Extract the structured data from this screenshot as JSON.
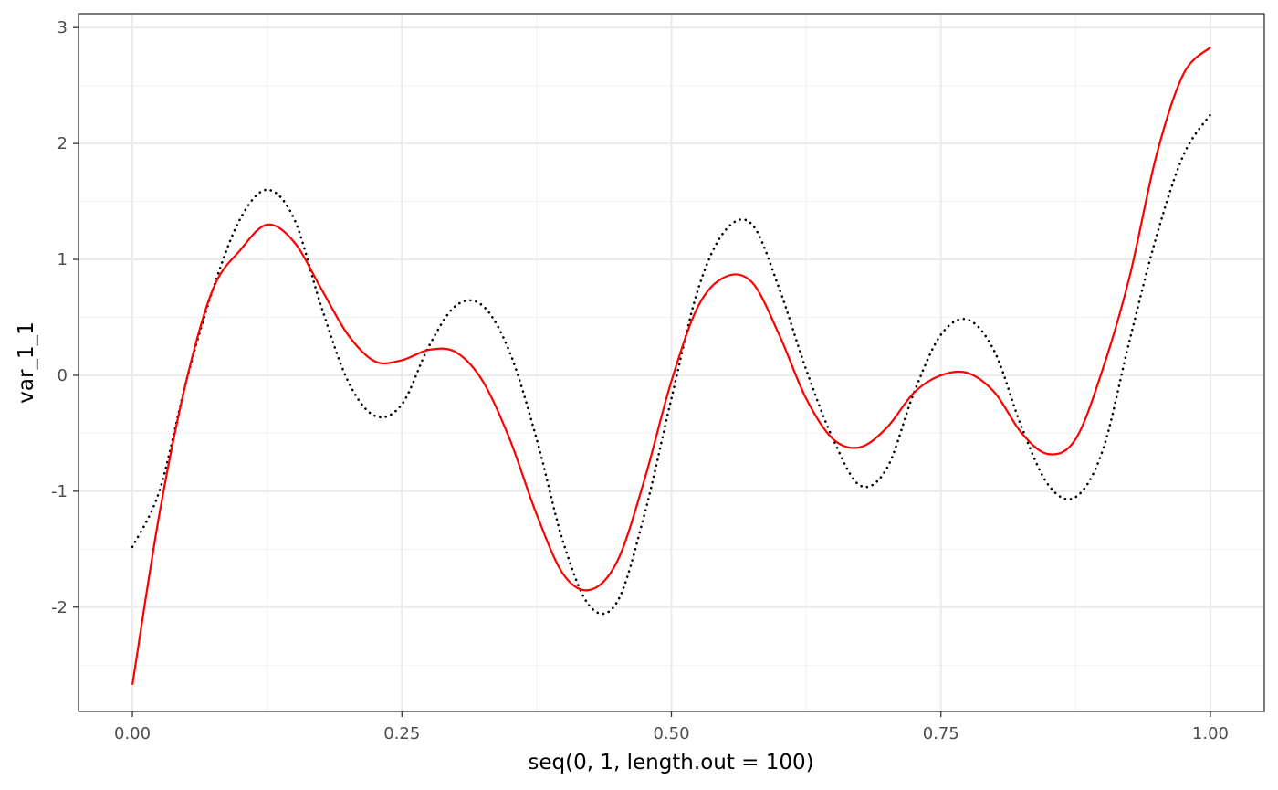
{
  "chart_data": {
    "type": "line",
    "xlabel": "seq(0, 1, length.out = 100)",
    "ylabel": "var_1_1",
    "xlim": [
      -0.05,
      1.05
    ],
    "ylim": [
      -2.9,
      3.12
    ],
    "x_ticks": [
      0,
      0.25,
      0.5,
      0.75,
      1
    ],
    "x_tick_labels": [
      "0.00",
      "0.25",
      "0.50",
      "0.75",
      "1.00"
    ],
    "y_ticks": [
      -2,
      -1,
      0,
      1,
      2,
      3
    ],
    "y_tick_labels": [
      "-2",
      "-1",
      "0",
      "1",
      "2",
      "3"
    ],
    "grid": true,
    "series": [
      {
        "style": "dotted",
        "color": "#000000",
        "x": [
          0,
          0.025,
          0.05,
          0.075,
          0.1,
          0.125,
          0.15,
          0.175,
          0.2,
          0.225,
          0.25,
          0.275,
          0.3,
          0.325,
          0.35,
          0.375,
          0.4,
          0.425,
          0.45,
          0.475,
          0.5,
          0.525,
          0.55,
          0.575,
          0.6,
          0.625,
          0.65,
          0.675,
          0.7,
          0.725,
          0.75,
          0.775,
          0.8,
          0.825,
          0.85,
          0.875,
          0.9,
          0.925,
          0.95,
          0.975,
          1
        ],
        "values": [
          -1.48,
          -1.0,
          -0.05,
          0.75,
          1.35,
          1.6,
          1.35,
          0.6,
          -0.05,
          -0.35,
          -0.25,
          0.25,
          0.6,
          0.6,
          0.2,
          -0.55,
          -1.45,
          -2.0,
          -1.95,
          -1.2,
          -0.2,
          0.75,
          1.25,
          1.3,
          0.75,
          0.05,
          -0.55,
          -0.95,
          -0.8,
          -0.15,
          0.35,
          0.48,
          0.2,
          -0.45,
          -0.95,
          -1.05,
          -0.65,
          0.3,
          1.2,
          1.9,
          2.25
        ]
      },
      {
        "style": "solid",
        "color": "#ff0000",
        "x": [
          0,
          0.025,
          0.05,
          0.075,
          0.1,
          0.125,
          0.15,
          0.175,
          0.2,
          0.225,
          0.25,
          0.275,
          0.3,
          0.325,
          0.35,
          0.375,
          0.4,
          0.425,
          0.45,
          0.475,
          0.5,
          0.525,
          0.55,
          0.575,
          0.6,
          0.625,
          0.65,
          0.675,
          0.7,
          0.725,
          0.75,
          0.775,
          0.8,
          0.825,
          0.85,
          0.875,
          0.9,
          0.925,
          0.95,
          0.975,
          1
        ],
        "values": [
          -2.67,
          -1.2,
          -0.05,
          0.75,
          1.08,
          1.3,
          1.15,
          0.75,
          0.35,
          0.12,
          0.13,
          0.22,
          0.2,
          -0.05,
          -0.55,
          -1.2,
          -1.72,
          -1.85,
          -1.6,
          -0.9,
          -0.05,
          0.6,
          0.85,
          0.8,
          0.35,
          -0.2,
          -0.55,
          -0.62,
          -0.45,
          -0.15,
          0.0,
          0.02,
          -0.15,
          -0.5,
          -0.68,
          -0.55,
          0.05,
          0.85,
          1.9,
          2.6,
          2.83
        ]
      }
    ]
  }
}
